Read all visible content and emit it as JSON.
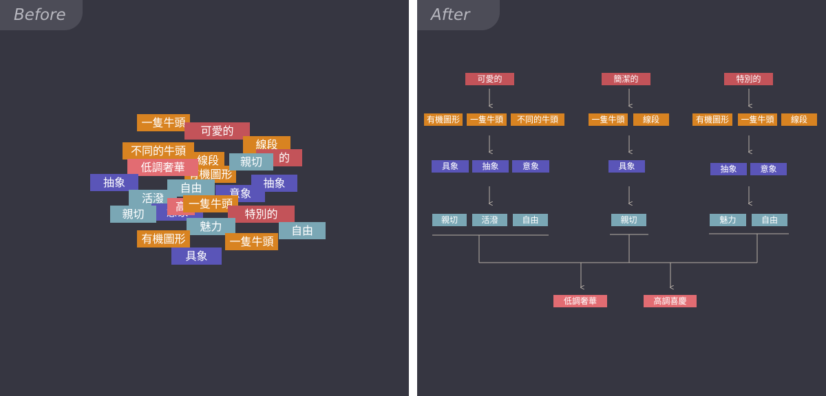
{
  "before": {
    "label": "Before",
    "tags": [
      {
        "text": "一隻牛頭",
        "color": "orange"
      },
      {
        "text": "可愛的",
        "color": "red"
      },
      {
        "text": "線段",
        "color": "orange"
      },
      {
        "text": "不同的牛頭",
        "color": "orange"
      },
      {
        "text": "的",
        "color": "red"
      },
      {
        "text": "線段",
        "color": "orange"
      },
      {
        "text": "有機圖形",
        "color": "orange"
      },
      {
        "text": "親切",
        "color": "teal"
      },
      {
        "text": "低調奢華",
        "color": "pink"
      },
      {
        "text": "抽象",
        "color": "blue"
      },
      {
        "text": "抽象",
        "color": "blue"
      },
      {
        "text": "自由",
        "color": "teal"
      },
      {
        "text": "意象",
        "color": "blue"
      },
      {
        "text": "活潑",
        "color": "teal"
      },
      {
        "text": "意象",
        "color": "blue"
      },
      {
        "text": "高",
        "color": "pink"
      },
      {
        "text": "一隻牛頭",
        "color": "orange"
      },
      {
        "text": "親切",
        "color": "teal"
      },
      {
        "text": "特別的",
        "color": "red"
      },
      {
        "text": "魅力",
        "color": "teal"
      },
      {
        "text": "自由",
        "color": "teal"
      },
      {
        "text": "有機圖形",
        "color": "orange"
      },
      {
        "text": "一隻牛頭",
        "color": "orange"
      },
      {
        "text": "具象",
        "color": "blue"
      }
    ]
  },
  "after": {
    "label": "After",
    "nodes": [
      {
        "text": "可愛的",
        "color": "red"
      },
      {
        "text": "簡潔的",
        "color": "red"
      },
      {
        "text": "特別的",
        "color": "red"
      },
      {
        "text": "有機圖形",
        "color": "orange"
      },
      {
        "text": "一隻牛頭",
        "color": "orange"
      },
      {
        "text": "不同的牛頭",
        "color": "orange"
      },
      {
        "text": "一隻牛頭",
        "color": "orange"
      },
      {
        "text": "線段",
        "color": "orange"
      },
      {
        "text": "有機圖形",
        "color": "orange"
      },
      {
        "text": "一隻牛頭",
        "color": "orange"
      },
      {
        "text": "線段",
        "color": "orange"
      },
      {
        "text": "具象",
        "color": "blue"
      },
      {
        "text": "抽象",
        "color": "blue"
      },
      {
        "text": "意象",
        "color": "blue"
      },
      {
        "text": "具象",
        "color": "blue"
      },
      {
        "text": "抽象",
        "color": "blue"
      },
      {
        "text": "意象",
        "color": "blue"
      },
      {
        "text": "親切",
        "color": "teal"
      },
      {
        "text": "活潑",
        "color": "teal"
      },
      {
        "text": "自由",
        "color": "teal"
      },
      {
        "text": "親切",
        "color": "teal"
      },
      {
        "text": "魅力",
        "color": "teal"
      },
      {
        "text": "自由",
        "color": "teal"
      },
      {
        "text": "低調奢華",
        "color": "pink"
      },
      {
        "text": "高調喜慶",
        "color": "pink"
      }
    ]
  },
  "colors": {
    "panel_bg": "#363641",
    "orange": "#d88321",
    "red": "#c35359",
    "pink": "#e26c72",
    "blue": "#5a55b8",
    "teal": "#7aa7b5",
    "connector": "#b8b0a8"
  }
}
